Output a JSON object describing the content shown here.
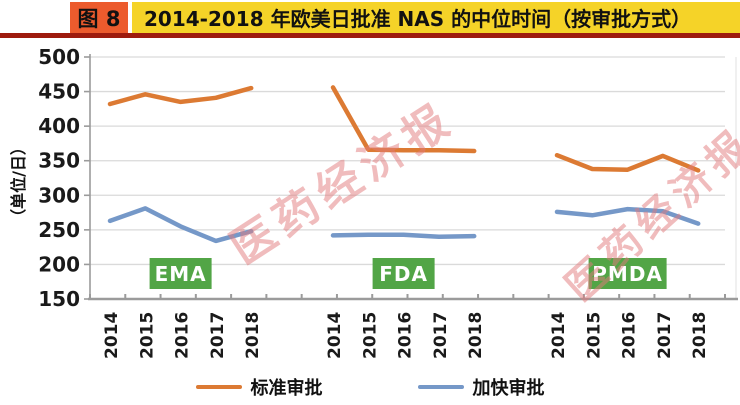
{
  "header": {
    "figure_label": "图 8",
    "title": "2014-2018 年欧美日批准 NAS 的中位时间（按审批方式）"
  },
  "chart_data": {
    "type": "line",
    "title": "2014-2018 年欧美日批准 NAS 的中位时间（按审批方式）",
    "ylabel": "（单位/日）",
    "xlabel": "",
    "ylim": [
      150,
      500
    ],
    "yticks": [
      500,
      450,
      400,
      350,
      300,
      250,
      200,
      150
    ],
    "grid": true,
    "legend_position": "bottom",
    "groups": [
      {
        "label": "EMA",
        "years": [
          "2014",
          "2015",
          "2016",
          "2017",
          "2018"
        ]
      },
      {
        "label": "FDA",
        "years": [
          "2014",
          "2015",
          "2016",
          "2017",
          "2018"
        ]
      },
      {
        "label": "PMDA",
        "years": [
          "2014",
          "2015",
          "2016",
          "2017",
          "2018"
        ]
      }
    ],
    "series": [
      {
        "name": "标准审批",
        "key": "standard-approval",
        "color": "#DC7A33",
        "values": {
          "EMA": [
            432,
            446,
            435,
            441,
            455
          ],
          "FDA": [
            456,
            366,
            365,
            365,
            364
          ],
          "PMDA": [
            358,
            338,
            337,
            357,
            336
          ]
        }
      },
      {
        "name": "加快审批",
        "key": "expedited-approval",
        "color": "#7598C8",
        "values": {
          "EMA": [
            263,
            281,
            255,
            234,
            248
          ],
          "FDA": [
            242,
            243,
            243,
            240,
            241
          ],
          "PMDA": [
            276,
            271,
            280,
            277,
            259
          ]
        }
      }
    ]
  },
  "watermark": {
    "text": "医药经济报"
  },
  "colors": {
    "badge_bg": "#EC5B2D",
    "titlebar_bg": "#F5D328",
    "underline": "#9E1B0E",
    "agency_bg": "#52A546",
    "watermark": "#E27B7D",
    "axis": "#9B9B9B",
    "grid": "#DADADA"
  }
}
